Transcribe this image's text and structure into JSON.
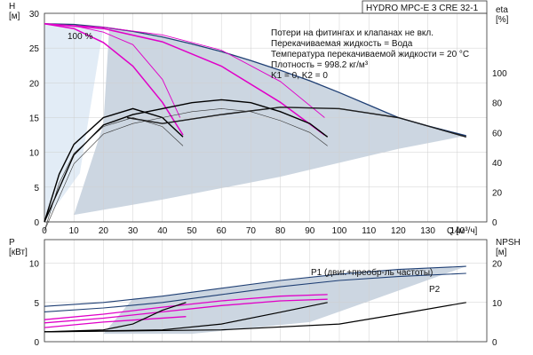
{
  "chart_data": [
    {
      "type": "line",
      "title": "HYDRO MPC-E 3 CRE 32-1",
      "xlabel": "Q [м³/ч]",
      "ylabel": "H\n[м]",
      "y2label": "eta\n[%]",
      "xlim": [
        0,
        150
      ],
      "ylim": [
        0,
        30
      ],
      "y2lim": [
        0,
        140
      ],
      "x_ticks": [
        0,
        10,
        20,
        30,
        40,
        50,
        60,
        70,
        80,
        90,
        100,
        110,
        120,
        130,
        140
      ],
      "y_ticks": [
        0,
        5,
        10,
        15,
        20,
        25,
        30
      ],
      "y2_ticks": [
        0,
        20,
        40,
        60,
        80,
        100
      ],
      "grid": true,
      "notes": [
        "Потери на фитингах и клапанах не вкл.",
        "Перекачиваемая жидкость = Вода",
        "Температура перекачиваемой жидкости = 20 °C",
        "Плотность = 998.2 кг/м³",
        "K1 = 0, K2 = 0"
      ],
      "annotations": [
        {
          "text": "100 %",
          "x": 10,
          "y": 29
        }
      ],
      "colors": {
        "max_curve": "#1f3f74",
        "pump_curve": "#e000c8",
        "efficiency": "#000000",
        "band": "#c6d2de",
        "light_band": "#e2ecf6"
      },
      "series": [
        {
          "role": "max-envelope",
          "x": [
            0,
            10,
            20,
            30,
            40,
            50,
            60,
            70,
            80,
            90,
            100,
            110,
            120,
            130,
            143
          ],
          "y": [
            28.5,
            28.4,
            28.0,
            27.4,
            26.6,
            25.6,
            24.5,
            23.2,
            21.8,
            20.3,
            18.6,
            16.8,
            15.0,
            13.8,
            12.4
          ]
        },
        {
          "role": "pump-1",
          "x": [
            0,
            10,
            20,
            30,
            40,
            47
          ],
          "y": [
            28.5,
            27.8,
            25.8,
            22.4,
            17.2,
            12.5
          ]
        },
        {
          "role": "pump-1-upper",
          "x": [
            0,
            10,
            20,
            30,
            40,
            46
          ],
          "y": [
            28.5,
            28.2,
            27.3,
            25.5,
            20.5,
            15.0
          ]
        },
        {
          "role": "pump-2",
          "x": [
            0,
            20,
            40,
            60,
            80,
            95
          ],
          "y": [
            28.5,
            27.8,
            25.9,
            22.4,
            17.2,
            12.5
          ]
        },
        {
          "role": "pump-2-upper",
          "x": [
            0,
            20,
            40,
            60,
            80,
            95
          ],
          "y": [
            28.5,
            28.0,
            26.9,
            24.7,
            20.2,
            15.0
          ]
        },
        {
          "role": "eta-1",
          "x": [
            0,
            5,
            10,
            20,
            30,
            40,
            47
          ],
          "y2": [
            0,
            32,
            52,
            70,
            76,
            70,
            57
          ]
        },
        {
          "role": "eta-2",
          "x": [
            0,
            10,
            20,
            30,
            40,
            50,
            60,
            70,
            80,
            90,
            96
          ],
          "y2": [
            0,
            45,
            65,
            72,
            76,
            80,
            82,
            80,
            74,
            66,
            57
          ]
        },
        {
          "role": "eta-3",
          "x": [
            28,
            40,
            60,
            80,
            100,
            120,
            143
          ],
          "y2": [
            70,
            66,
            72,
            77,
            76,
            70,
            57
          ]
        }
      ]
    },
    {
      "type": "line",
      "xlim": [
        0,
        150
      ],
      "ylim": [
        0,
        13
      ],
      "y2lim": [
        0,
        26
      ],
      "ylabel": "P\n[кВт]",
      "y2label": "NPSH\n[м]",
      "y_ticks": [
        0,
        5,
        10
      ],
      "y2_ticks": [
        0,
        10,
        20
      ],
      "grid": true,
      "series": [
        {
          "name": "P1 (двиг.+преобр-ль частоты)",
          "x": [
            0,
            20,
            40,
            60,
            80,
            100,
            120,
            143
          ],
          "y": [
            4.5,
            5.0,
            5.8,
            6.8,
            7.8,
            8.6,
            9.2,
            9.6
          ]
        },
        {
          "name": "P2",
          "x": [
            0,
            20,
            40,
            60,
            80,
            100,
            120,
            143
          ],
          "y": [
            3.8,
            4.3,
            5.0,
            6.0,
            7.0,
            7.8,
            8.3,
            8.7
          ]
        },
        {
          "role": "p-pink-1",
          "x": [
            0,
            20,
            40,
            60,
            80,
            96
          ],
          "y": [
            2.8,
            3.5,
            4.4,
            5.2,
            5.8,
            6.0
          ]
        },
        {
          "role": "p-pink-2",
          "x": [
            0,
            20,
            40,
            60,
            80,
            96
          ],
          "y": [
            2.4,
            3.0,
            3.8,
            4.6,
            5.2,
            5.4
          ]
        },
        {
          "role": "p-pink-3",
          "x": [
            0,
            20,
            48
          ],
          "y": [
            1.8,
            2.5,
            3.2
          ]
        },
        {
          "role": "npsh-1",
          "x": [
            0,
            20,
            30,
            40,
            48
          ],
          "y2": [
            2.5,
            3.0,
            4.5,
            8.0,
            10.0
          ]
        },
        {
          "role": "npsh-2",
          "x": [
            0,
            40,
            60,
            80,
            96
          ],
          "y2": [
            2.5,
            3.0,
            4.5,
            7.5,
            10.0
          ]
        },
        {
          "role": "npsh-3",
          "x": [
            0,
            60,
            100,
            120,
            143
          ],
          "y2": [
            2.5,
            3.0,
            4.5,
            7.0,
            10.0
          ]
        }
      ]
    }
  ]
}
